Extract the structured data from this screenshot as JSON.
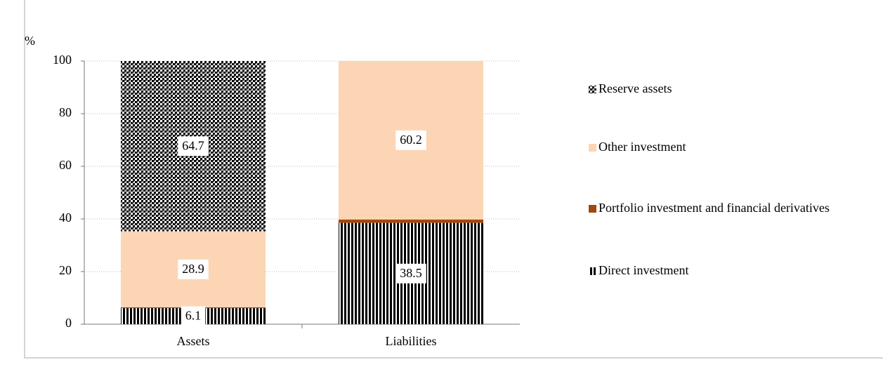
{
  "chart_data": {
    "type": "stacked-bar",
    "y_axis_label": "%",
    "categories": [
      "Assets",
      "Liabilities"
    ],
    "series": [
      {
        "name": "Direct investment",
        "color": "#9c5326",
        "pattern": "vertical-stripes",
        "values": [
          6.1,
          38.5
        ],
        "value_labels": [
          "6.1",
          "38.5"
        ]
      },
      {
        "name": "Portfolio investment and financial derivatives",
        "color": "#a0470f",
        "pattern": "solid",
        "values": [
          0.3,
          1.3
        ]
      },
      {
        "name": "Other investment",
        "color": "#fcd5b5",
        "pattern": "solid",
        "values": [
          28.9,
          60.2
        ],
        "value_labels": [
          "28.9",
          "60.2"
        ]
      },
      {
        "name": "Reserve assets",
        "color": "#a0612f",
        "pattern": "checker",
        "values": [
          64.7,
          0
        ],
        "value_labels": [
          "64.7",
          null
        ]
      }
    ],
    "ylim": [
      0,
      100
    ],
    "yticks": [
      0,
      20,
      40,
      60,
      80,
      100
    ],
    "grid": true,
    "legend": "right"
  }
}
